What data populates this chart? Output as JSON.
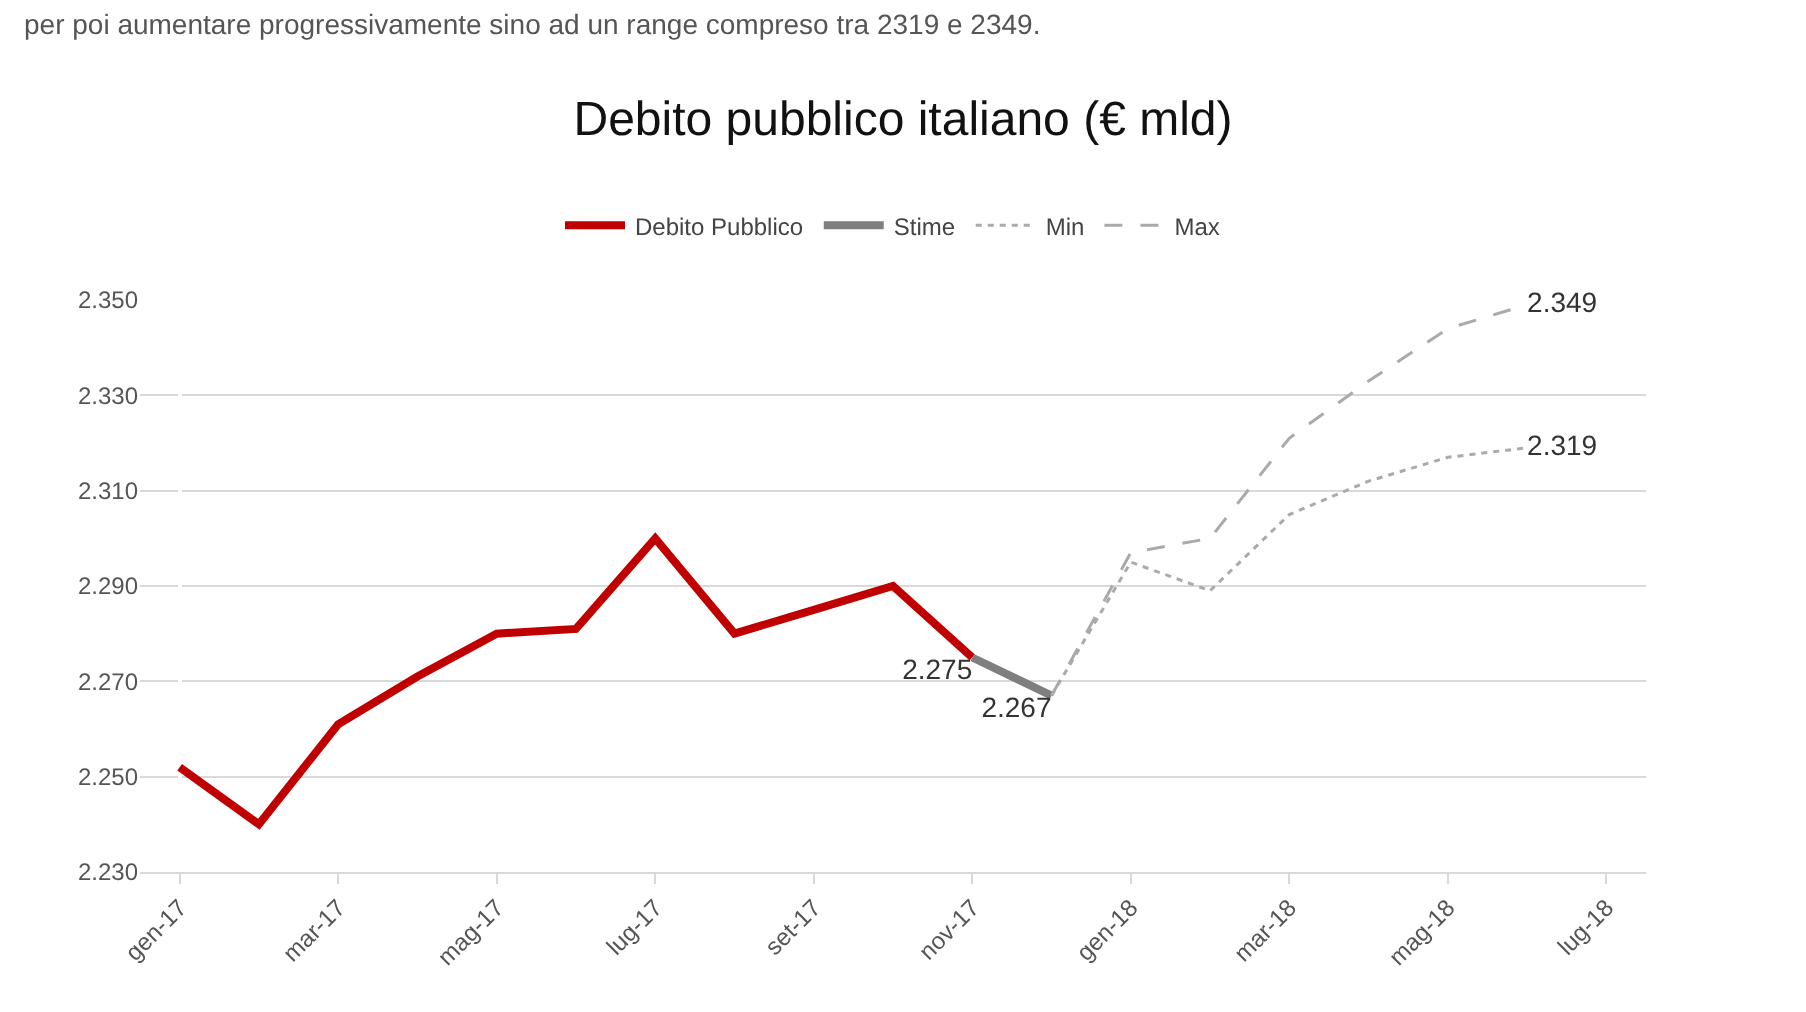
{
  "chart_data": {
    "type": "line",
    "title": "Debito pubblico italiano (€ mld)",
    "annotations": [
      "per poi aumentare progressivamente sino ad un range compreso tra 2319 e 2349."
    ],
    "categories": [
      "gen-17",
      null,
      "mar-17",
      null,
      "mag-17",
      null,
      "lug-17",
      null,
      "set-17",
      null,
      "nov-17",
      null,
      "gen-18",
      null,
      "mar-18",
      null,
      "mag-18",
      null,
      "lug-18"
    ],
    "series": [
      {
        "name": "Debito Pubblico",
        "color": "#c00000",
        "line_style": "solid",
        "values": [
          2252,
          2240,
          2261,
          2271,
          2280,
          2281,
          2300,
          2280,
          2285,
          2290,
          2275,
          null,
          null,
          null,
          null,
          null,
          null,
          null,
          null
        ]
      },
      {
        "name": "Stime",
        "color": "#7f7f7f",
        "line_style": "solid",
        "values": [
          null,
          null,
          null,
          null,
          null,
          null,
          null,
          null,
          null,
          null,
          2275,
          2267,
          null,
          null,
          null,
          null,
          null,
          null,
          null
        ],
        "value_labels": [
          null,
          null,
          null,
          null,
          null,
          null,
          null,
          null,
          null,
          null,
          "2.275",
          "2.267",
          null,
          null,
          null,
          null,
          null,
          null,
          null
        ]
      },
      {
        "name": "Min",
        "color": "#aaaaaa",
        "line_style": "dotted",
        "values": [
          null,
          null,
          null,
          null,
          null,
          null,
          null,
          null,
          null,
          null,
          null,
          2267,
          2295,
          2289,
          2305,
          2312,
          2317,
          2319,
          null
        ],
        "value_labels": [
          null,
          null,
          null,
          null,
          null,
          null,
          null,
          null,
          null,
          null,
          null,
          null,
          null,
          null,
          null,
          null,
          null,
          "2.319",
          null
        ]
      },
      {
        "name": "Max",
        "color": "#aaaaaa",
        "line_style": "dashed",
        "values": [
          null,
          null,
          null,
          null,
          null,
          null,
          null,
          null,
          null,
          null,
          null,
          2267,
          2297,
          2300,
          2321,
          2333,
          2344,
          2349,
          null
        ],
        "value_labels": [
          null,
          null,
          null,
          null,
          null,
          null,
          null,
          null,
          null,
          null,
          null,
          null,
          null,
          null,
          null,
          null,
          null,
          "2.349",
          null
        ]
      }
    ],
    "ylim": [
      2230,
      2350
    ],
    "yticks": [
      {
        "value": 2230,
        "label": "2.230"
      },
      {
        "value": 2250,
        "label": "2.250"
      },
      {
        "value": 2270,
        "label": "2.270"
      },
      {
        "value": 2290,
        "label": "2.290"
      },
      {
        "value": 2310,
        "label": "2.310"
      },
      {
        "value": 2330,
        "label": "2.330"
      },
      {
        "value": 2350,
        "label": "2.350"
      }
    ],
    "grid": "y",
    "legend": "top",
    "marker": "none"
  }
}
